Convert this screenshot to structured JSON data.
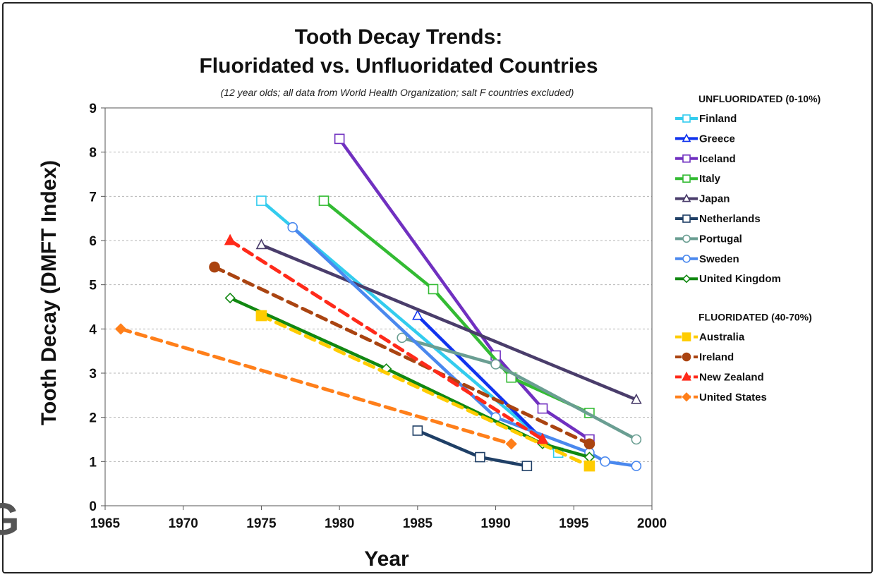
{
  "chart_data": {
    "type": "line",
    "title_line1": "Tooth Decay Trends:",
    "title_line2": "Fluoridated vs. Unfluoridated Countries",
    "subtitle": "(12 year olds; all data from World Health Organization; salt F countries excluded)",
    "xlabel": "Year",
    "ylabel": "Tooth Decay (DMFT Index)",
    "xlim": [
      1965,
      2000
    ],
    "ylim": [
      0,
      9
    ],
    "x_ticks": [
      "1965",
      "1970",
      "1975",
      "1980",
      "1985",
      "1990",
      "1995",
      "2000"
    ],
    "y_ticks": [
      "0",
      "1",
      "2",
      "3",
      "4",
      "5",
      "6",
      "7",
      "8",
      "9"
    ],
    "grid": "horizontal-dashed",
    "legend_position": "right",
    "groups": [
      {
        "heading": "UNFLUORIDATED (0-10%)",
        "key": "unfluoridated"
      },
      {
        "heading": "FLUORIDATED (40-70%)",
        "key": "fluoridated"
      }
    ],
    "series": [
      {
        "name": "Finland",
        "group": "unfluoridated",
        "color": "#33ccee",
        "marker": "square",
        "dashed": false,
        "points": [
          [
            1975,
            6.9
          ],
          [
            1994,
            1.2
          ]
        ]
      },
      {
        "name": "Greece",
        "group": "unfluoridated",
        "color": "#1133ee",
        "marker": "triangle",
        "dashed": false,
        "points": [
          [
            1985,
            4.3
          ],
          [
            1993,
            1.5
          ]
        ]
      },
      {
        "name": "Iceland",
        "group": "unfluoridated",
        "color": "#7030c0",
        "marker": "square",
        "dashed": false,
        "points": [
          [
            1980,
            8.3
          ],
          [
            1990,
            3.4
          ],
          [
            1993,
            2.2
          ],
          [
            1996,
            1.5
          ]
        ]
      },
      {
        "name": "Italy",
        "group": "unfluoridated",
        "color": "#33bb33",
        "marker": "square",
        "dashed": false,
        "points": [
          [
            1979,
            6.9
          ],
          [
            1986,
            4.9
          ],
          [
            1991,
            2.9
          ],
          [
            1996,
            2.1
          ]
        ]
      },
      {
        "name": "Japan",
        "group": "unfluoridated",
        "color": "#4a3d6b",
        "marker": "triangle",
        "dashed": false,
        "points": [
          [
            1975,
            5.9
          ],
          [
            1999,
            2.4
          ]
        ]
      },
      {
        "name": "Netherlands",
        "group": "unfluoridated",
        "color": "#1f3f66",
        "marker": "square",
        "dashed": false,
        "points": [
          [
            1985,
            1.7
          ],
          [
            1989,
            1.1
          ],
          [
            1992,
            0.9
          ]
        ]
      },
      {
        "name": "Portugal",
        "group": "unfluoridated",
        "color": "#6a9e92",
        "marker": "circle",
        "dashed": false,
        "points": [
          [
            1984,
            3.8
          ],
          [
            1990,
            3.2
          ],
          [
            1999,
            1.5
          ]
        ]
      },
      {
        "name": "Sweden",
        "group": "unfluoridated",
        "color": "#4a88ee",
        "marker": "circle",
        "dashed": false,
        "points": [
          [
            1977,
            6.3
          ],
          [
            1990,
            2.0
          ],
          [
            1996,
            1.2
          ],
          [
            1997,
            1.0
          ],
          [
            1999,
            0.9
          ]
        ]
      },
      {
        "name": "United Kingdom",
        "group": "unfluoridated",
        "color": "#118811",
        "marker": "diamond",
        "dashed": false,
        "points": [
          [
            1973,
            4.7
          ],
          [
            1983,
            3.1
          ],
          [
            1993,
            1.4
          ],
          [
            1996,
            1.1
          ]
        ]
      },
      {
        "name": "Australia",
        "group": "fluoridated",
        "color": "#ffcc00",
        "marker": "square-filled",
        "dashed": true,
        "points": [
          [
            1975,
            4.3
          ],
          [
            1996,
            0.9
          ]
        ]
      },
      {
        "name": "Ireland",
        "group": "fluoridated",
        "color": "#aa4411",
        "marker": "circle-filled",
        "dashed": true,
        "points": [
          [
            1972,
            5.4
          ],
          [
            1996,
            1.4
          ]
        ]
      },
      {
        "name": "New Zealand",
        "group": "fluoridated",
        "color": "#ff2a1a",
        "marker": "triangle-filled",
        "dashed": true,
        "points": [
          [
            1973,
            6.0
          ],
          [
            1993,
            1.5
          ]
        ]
      },
      {
        "name": "United States",
        "group": "fluoridated",
        "color": "#ff7f1a",
        "marker": "diamond-filled",
        "dashed": true,
        "points": [
          [
            1966,
            4.0
          ],
          [
            1991,
            1.4
          ]
        ]
      }
    ]
  },
  "edge_glyph": "G"
}
